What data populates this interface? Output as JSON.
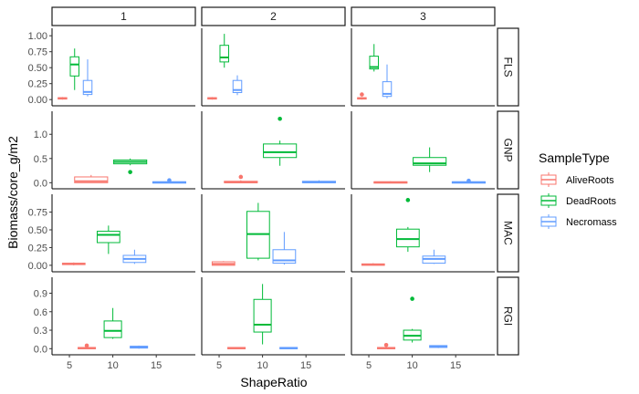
{
  "chart_data": {
    "type": "boxplot",
    "facet_columns": [
      "1",
      "2",
      "3"
    ],
    "facet_rows": [
      "FLS",
      "GNP",
      "MAC",
      "RGI"
    ],
    "xlabel": "ShapeRatio",
    "ylabel": "Biomass/core_g/m2",
    "xlim": [
      3,
      19.5
    ],
    "x_ticks": [
      5,
      10,
      15
    ],
    "y_axes": {
      "FLS": {
        "lim": [
          -0.04,
          1.06
        ],
        "ticks": [
          0.0,
          0.25,
          0.5,
          0.75,
          1.0
        ],
        "tick_labels": [
          "0.00",
          "0.25",
          "0.50",
          "0.75",
          "1.00"
        ]
      },
      "GNP": {
        "lim": [
          -0.05,
          1.4
        ],
        "ticks": [
          0.0,
          0.5,
          1.0
        ],
        "tick_labels": [
          "0.0",
          "0.5",
          "1.0"
        ]
      },
      "MAC": {
        "lim": [
          -0.04,
          0.95
        ],
        "ticks": [
          0.0,
          0.25,
          0.5,
          0.75
        ],
        "tick_labels": [
          "0.00",
          "0.25",
          "0.50",
          "0.75"
        ]
      },
      "RGI": {
        "lim": [
          -0.04,
          1.1
        ],
        "ticks": [
          0.0,
          0.3,
          0.6,
          0.9
        ],
        "tick_labels": [
          "0.0",
          "0.3",
          "0.6",
          "0.9"
        ]
      }
    },
    "legend": {
      "title": "SampleType",
      "position": "right",
      "entries": [
        {
          "name": "AliveRoots",
          "color": "#F8766D"
        },
        {
          "name": "DeadRoots",
          "color": "#00BA38"
        },
        {
          "name": "Necromass",
          "color": "#619CFF"
        }
      ]
    },
    "grid": false,
    "boxes": [
      {
        "row": "FLS",
        "col": "1",
        "type": "AliveRoots",
        "x": 4.2,
        "width": 1.0,
        "q1": 0.01,
        "median": 0.02,
        "q3": 0.03,
        "lo": 0.0,
        "hi": 0.04,
        "outliers": []
      },
      {
        "row": "FLS",
        "col": "1",
        "type": "DeadRoots",
        "x": 5.6,
        "width": 1.0,
        "q1": 0.37,
        "median": 0.55,
        "q3": 0.67,
        "lo": 0.15,
        "hi": 0.8,
        "outliers": []
      },
      {
        "row": "FLS",
        "col": "1",
        "type": "Necromass",
        "x": 7.1,
        "width": 1.0,
        "q1": 0.08,
        "median": 0.12,
        "q3": 0.3,
        "lo": 0.05,
        "hi": 0.63,
        "outliers": []
      },
      {
        "row": "FLS",
        "col": "2",
        "type": "AliveRoots",
        "x": 4.2,
        "width": 1.0,
        "q1": 0.01,
        "median": 0.02,
        "q3": 0.03,
        "lo": 0.0,
        "hi": 0.04,
        "outliers": []
      },
      {
        "row": "FLS",
        "col": "2",
        "type": "DeadRoots",
        "x": 5.6,
        "width": 1.0,
        "q1": 0.59,
        "median": 0.66,
        "q3": 0.85,
        "lo": 0.5,
        "hi": 1.03,
        "outliers": []
      },
      {
        "row": "FLS",
        "col": "2",
        "type": "Necromass",
        "x": 7.1,
        "width": 1.0,
        "q1": 0.11,
        "median": 0.15,
        "q3": 0.3,
        "lo": 0.07,
        "hi": 0.38,
        "outliers": []
      },
      {
        "row": "FLS",
        "col": "3",
        "type": "AliveRoots",
        "x": 4.2,
        "width": 1.0,
        "q1": 0.01,
        "median": 0.02,
        "q3": 0.03,
        "lo": 0.0,
        "hi": 0.04,
        "outliers": [
          0.08
        ]
      },
      {
        "row": "FLS",
        "col": "3",
        "type": "DeadRoots",
        "x": 5.6,
        "width": 1.0,
        "q1": 0.48,
        "median": 0.51,
        "q3": 0.68,
        "lo": 0.44,
        "hi": 0.87,
        "outliers": []
      },
      {
        "row": "FLS",
        "col": "3",
        "type": "Necromass",
        "x": 7.1,
        "width": 1.0,
        "q1": 0.05,
        "median": 0.09,
        "q3": 0.28,
        "lo": 0.02,
        "hi": 0.55,
        "outliers": []
      },
      {
        "row": "GNP",
        "col": "1",
        "type": "AliveRoots",
        "x": 7.5,
        "width": 3.8,
        "q1": 0.0,
        "median": 0.03,
        "q3": 0.12,
        "lo": 0.0,
        "hi": 0.16,
        "outliers": []
      },
      {
        "row": "GNP",
        "col": "1",
        "type": "DeadRoots",
        "x": 12.0,
        "width": 3.8,
        "q1": 0.39,
        "median": 0.43,
        "q3": 0.47,
        "lo": 0.36,
        "hi": 0.5,
        "outliers": [
          0.22
        ]
      },
      {
        "row": "GNP",
        "col": "1",
        "type": "Necromass",
        "x": 16.5,
        "width": 3.8,
        "q1": 0.0,
        "median": 0.01,
        "q3": 0.02,
        "lo": 0.0,
        "hi": 0.03,
        "outliers": [
          0.05
        ]
      },
      {
        "row": "GNP",
        "col": "2",
        "type": "AliveRoots",
        "x": 7.5,
        "width": 3.8,
        "q1": 0.0,
        "median": 0.01,
        "q3": 0.03,
        "lo": 0.0,
        "hi": 0.05,
        "outliers": [
          0.12
        ]
      },
      {
        "row": "GNP",
        "col": "2",
        "type": "DeadRoots",
        "x": 12.0,
        "width": 3.8,
        "q1": 0.52,
        "median": 0.63,
        "q3": 0.8,
        "lo": 0.35,
        "hi": 0.87,
        "outliers": [
          1.32
        ]
      },
      {
        "row": "GNP",
        "col": "2",
        "type": "Necromass",
        "x": 16.5,
        "width": 3.8,
        "q1": 0.0,
        "median": 0.01,
        "q3": 0.03,
        "lo": 0.0,
        "hi": 0.05,
        "outliers": []
      },
      {
        "row": "GNP",
        "col": "3",
        "type": "AliveRoots",
        "x": 7.5,
        "width": 3.8,
        "q1": 0.0,
        "median": 0.01,
        "q3": 0.02,
        "lo": 0.0,
        "hi": 0.03,
        "outliers": []
      },
      {
        "row": "GNP",
        "col": "3",
        "type": "DeadRoots",
        "x": 12.0,
        "width": 3.8,
        "q1": 0.36,
        "median": 0.4,
        "q3": 0.52,
        "lo": 0.22,
        "hi": 0.73,
        "outliers": []
      },
      {
        "row": "GNP",
        "col": "3",
        "type": "Necromass",
        "x": 16.5,
        "width": 3.8,
        "q1": 0.0,
        "median": 0.01,
        "q3": 0.02,
        "lo": 0.0,
        "hi": 0.03,
        "outliers": [
          0.04
        ]
      },
      {
        "row": "MAC",
        "col": "1",
        "type": "AliveRoots",
        "x": 5.5,
        "width": 2.6,
        "q1": 0.01,
        "median": 0.02,
        "q3": 0.03,
        "lo": 0.0,
        "hi": 0.04,
        "outliers": []
      },
      {
        "row": "MAC",
        "col": "1",
        "type": "DeadRoots",
        "x": 9.5,
        "width": 2.6,
        "q1": 0.32,
        "median": 0.43,
        "q3": 0.48,
        "lo": 0.16,
        "hi": 0.56,
        "outliers": []
      },
      {
        "row": "MAC",
        "col": "1",
        "type": "Necromass",
        "x": 12.5,
        "width": 2.6,
        "q1": 0.04,
        "median": 0.09,
        "q3": 0.14,
        "lo": 0.02,
        "hi": 0.22,
        "outliers": []
      },
      {
        "row": "MAC",
        "col": "2",
        "type": "AliveRoots",
        "x": 5.5,
        "width": 2.6,
        "q1": 0.0,
        "median": 0.02,
        "q3": 0.05,
        "lo": 0.0,
        "hi": 0.06,
        "outliers": []
      },
      {
        "row": "MAC",
        "col": "2",
        "type": "DeadRoots",
        "x": 9.5,
        "width": 2.6,
        "q1": 0.1,
        "median": 0.44,
        "q3": 0.76,
        "lo": 0.07,
        "hi": 0.88,
        "outliers": []
      },
      {
        "row": "MAC",
        "col": "2",
        "type": "Necromass",
        "x": 12.5,
        "width": 2.6,
        "q1": 0.03,
        "median": 0.07,
        "q3": 0.22,
        "lo": 0.01,
        "hi": 0.47,
        "outliers": []
      },
      {
        "row": "MAC",
        "col": "3",
        "type": "AliveRoots",
        "x": 5.5,
        "width": 2.6,
        "q1": 0.0,
        "median": 0.01,
        "q3": 0.02,
        "lo": 0.0,
        "hi": 0.03,
        "outliers": []
      },
      {
        "row": "MAC",
        "col": "3",
        "type": "DeadRoots",
        "x": 9.5,
        "width": 2.6,
        "q1": 0.26,
        "median": 0.37,
        "q3": 0.51,
        "lo": 0.19,
        "hi": 0.54,
        "outliers": [
          0.92
        ]
      },
      {
        "row": "MAC",
        "col": "3",
        "type": "Necromass",
        "x": 12.5,
        "width": 2.6,
        "q1": 0.03,
        "median": 0.09,
        "q3": 0.13,
        "lo": 0.02,
        "hi": 0.22,
        "outliers": []
      },
      {
        "row": "RGI",
        "col": "1",
        "type": "AliveRoots",
        "x": 7.0,
        "width": 2.0,
        "q1": 0.0,
        "median": 0.01,
        "q3": 0.02,
        "lo": 0.0,
        "hi": 0.03,
        "outliers": [
          0.05
        ]
      },
      {
        "row": "RGI",
        "col": "1",
        "type": "DeadRoots",
        "x": 10.0,
        "width": 2.0,
        "q1": 0.18,
        "median": 0.29,
        "q3": 0.45,
        "lo": 0.16,
        "hi": 0.66,
        "outliers": []
      },
      {
        "row": "RGI",
        "col": "1",
        "type": "Necromass",
        "x": 13.0,
        "width": 2.0,
        "q1": 0.01,
        "median": 0.02,
        "q3": 0.04,
        "lo": 0.0,
        "hi": 0.05,
        "outliers": []
      },
      {
        "row": "RGI",
        "col": "2",
        "type": "AliveRoots",
        "x": 7.0,
        "width": 2.0,
        "q1": 0.0,
        "median": 0.01,
        "q3": 0.02,
        "lo": 0.0,
        "hi": 0.02,
        "outliers": []
      },
      {
        "row": "RGI",
        "col": "2",
        "type": "DeadRoots",
        "x": 10.0,
        "width": 2.0,
        "q1": 0.27,
        "median": 0.39,
        "q3": 0.8,
        "lo": 0.07,
        "hi": 1.05,
        "outliers": []
      },
      {
        "row": "RGI",
        "col": "2",
        "type": "Necromass",
        "x": 13.0,
        "width": 2.0,
        "q1": 0.0,
        "median": 0.01,
        "q3": 0.02,
        "lo": 0.0,
        "hi": 0.02,
        "outliers": []
      },
      {
        "row": "RGI",
        "col": "3",
        "type": "AliveRoots",
        "x": 7.0,
        "width": 2.0,
        "q1": 0.0,
        "median": 0.01,
        "q3": 0.02,
        "lo": 0.0,
        "hi": 0.02,
        "outliers": [
          0.06
        ]
      },
      {
        "row": "RGI",
        "col": "3",
        "type": "DeadRoots",
        "x": 10.0,
        "width": 2.0,
        "q1": 0.14,
        "median": 0.21,
        "q3": 0.3,
        "lo": 0.1,
        "hi": 0.32,
        "outliers": [
          0.81
        ]
      },
      {
        "row": "RGI",
        "col": "3",
        "type": "Necromass",
        "x": 13.0,
        "width": 2.0,
        "q1": 0.02,
        "median": 0.04,
        "q3": 0.05,
        "lo": 0.01,
        "hi": 0.05,
        "outliers": []
      }
    ]
  }
}
